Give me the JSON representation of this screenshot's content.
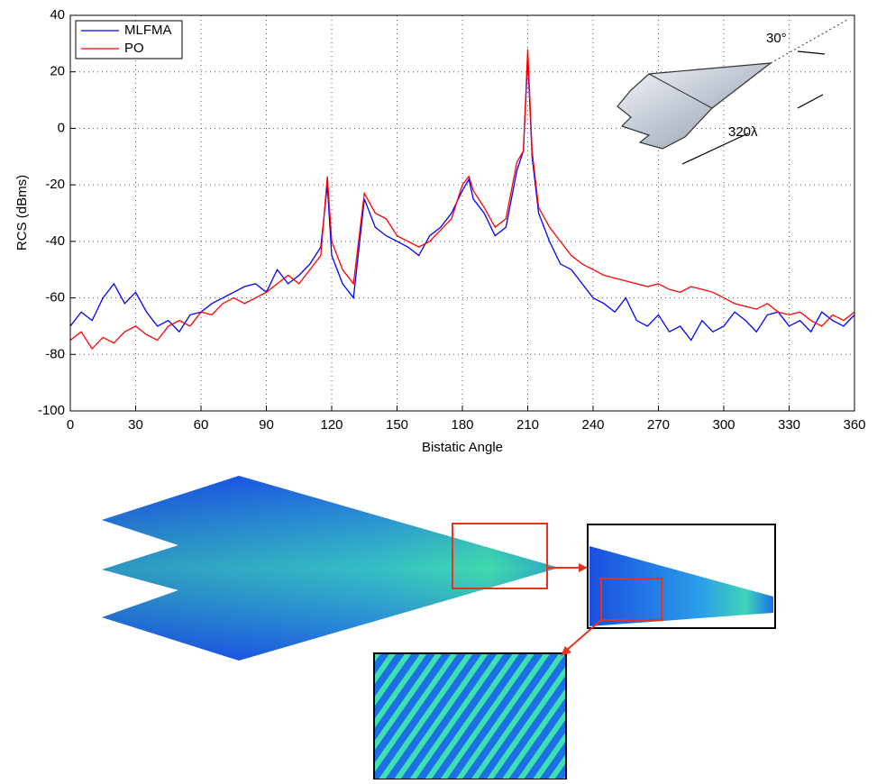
{
  "chart_data": {
    "type": "line",
    "ylabel": "RCS (dBms)",
    "xlabel": "Bistatic Angle",
    "annotations": [
      "30°",
      "320λ"
    ],
    "x": [
      0,
      5,
      10,
      15,
      20,
      25,
      30,
      35,
      40,
      45,
      50,
      55,
      60,
      65,
      70,
      75,
      80,
      85,
      90,
      95,
      100,
      105,
      110,
      115,
      118,
      120,
      125,
      130,
      135,
      140,
      145,
      150,
      155,
      160,
      165,
      170,
      175,
      180,
      183,
      185,
      190,
      195,
      200,
      205,
      208,
      210,
      212,
      215,
      220,
      225,
      230,
      235,
      240,
      245,
      250,
      255,
      260,
      265,
      270,
      275,
      280,
      285,
      290,
      295,
      300,
      305,
      310,
      315,
      320,
      325,
      330,
      335,
      340,
      345,
      350,
      355,
      360
    ],
    "series": [
      {
        "name": "MLFMA",
        "color": "#0000ff",
        "values": [
          -70,
          -65,
          -68,
          -60,
          -55,
          -62,
          -58,
          -65,
          -70,
          -68,
          -72,
          -66,
          -65,
          -62,
          -60,
          -58,
          -56,
          -55,
          -58,
          -50,
          -55,
          -52,
          -48,
          -42,
          -20,
          -45,
          -55,
          -60,
          -25,
          -35,
          -38,
          -40,
          -42,
          -45,
          -38,
          -35,
          -30,
          -22,
          -18,
          -25,
          -30,
          -38,
          -35,
          -15,
          -8,
          25,
          -10,
          -30,
          -40,
          -48,
          -50,
          -55,
          -60,
          -62,
          -65,
          -60,
          -68,
          -70,
          -66,
          -72,
          -70,
          -75,
          -68,
          -72,
          -70,
          -65,
          -68,
          -72,
          -66,
          -65,
          -70,
          -68,
          -72,
          -65,
          -68,
          -70,
          -66
        ]
      },
      {
        "name": "PO",
        "color": "#ff0000",
        "values": [
          -75,
          -72,
          -78,
          -74,
          -76,
          -72,
          -70,
          -73,
          -75,
          -70,
          -68,
          -70,
          -65,
          -66,
          -62,
          -60,
          -62,
          -60,
          -58,
          -55,
          -52,
          -55,
          -50,
          -45,
          -17,
          -40,
          -50,
          -55,
          -23,
          -30,
          -32,
          -38,
          -40,
          -42,
          -40,
          -36,
          -32,
          -20,
          -17,
          -22,
          -28,
          -35,
          -32,
          -12,
          -8,
          28,
          -8,
          -28,
          -35,
          -40,
          -45,
          -48,
          -50,
          -52,
          -53,
          -54,
          -55,
          -56,
          -55,
          -57,
          -58,
          -56,
          -57,
          -58,
          -60,
          -62,
          -63,
          -64,
          -62,
          -65,
          -66,
          -65,
          -68,
          -70,
          -66,
          -68,
          -65
        ]
      }
    ],
    "xlim": [
      0,
      360
    ],
    "xticks": [
      0,
      30,
      60,
      90,
      120,
      150,
      180,
      210,
      240,
      270,
      300,
      330,
      360
    ],
    "ylim": [
      -100,
      40
    ],
    "yticks": [
      -100,
      -80,
      -60,
      -40,
      -20,
      0,
      20,
      40
    ],
    "grid": true,
    "legend": "upper-left"
  }
}
